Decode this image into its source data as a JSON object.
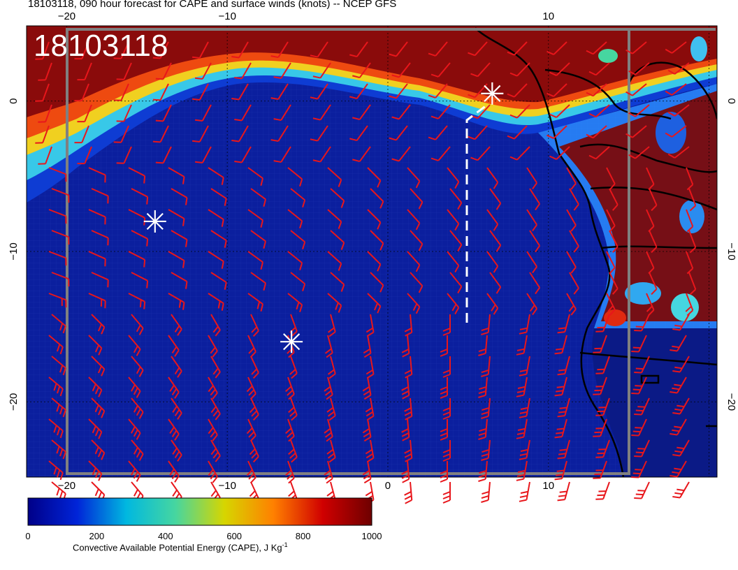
{
  "title": "18103118, 090 hour forecast for CAPE and surface winds (knots) -- NCEP GFS",
  "stamp": "18103118",
  "map": {
    "lon_range": [
      -22.5,
      20.5
    ],
    "lat_range": [
      -25,
      5
    ],
    "top_lon_ticks": [
      "−20",
      "−10",
      "10"
    ],
    "bottom_lon_ticks": [
      "−20",
      "−10",
      "0",
      "10"
    ],
    "left_lat_ticks": [
      "0",
      "−10",
      "−20"
    ],
    "right_lat_ticks": [
      "0",
      "−10",
      "−20"
    ],
    "colors": {
      "ocean_low": "#0a1f9a",
      "ocean_deep": "#0b1a86",
      "land_high": "#7a0a0a",
      "barb": "#e8161b",
      "marker": "#ffffff",
      "coast": "#000000"
    },
    "markers": [
      {
        "name": "marker-west",
        "lon": -14.5,
        "lat": -8
      },
      {
        "name": "marker-center",
        "lon": -6,
        "lat": -16
      },
      {
        "name": "marker-north",
        "lon": 6.5,
        "lat": 0.5
      }
    ]
  },
  "colorbar": {
    "ticks": [
      "0",
      "200",
      "400",
      "600",
      "800",
      "1000"
    ],
    "label_main": "Convective Available Potential Energy (CAPE), J Kg",
    "label_sup": "-1",
    "stops": [
      "#000088",
      "#0024d8",
      "#00b8e0",
      "#46d6a0",
      "#d6d600",
      "#ff8000",
      "#d00000",
      "#6e0000"
    ]
  }
}
